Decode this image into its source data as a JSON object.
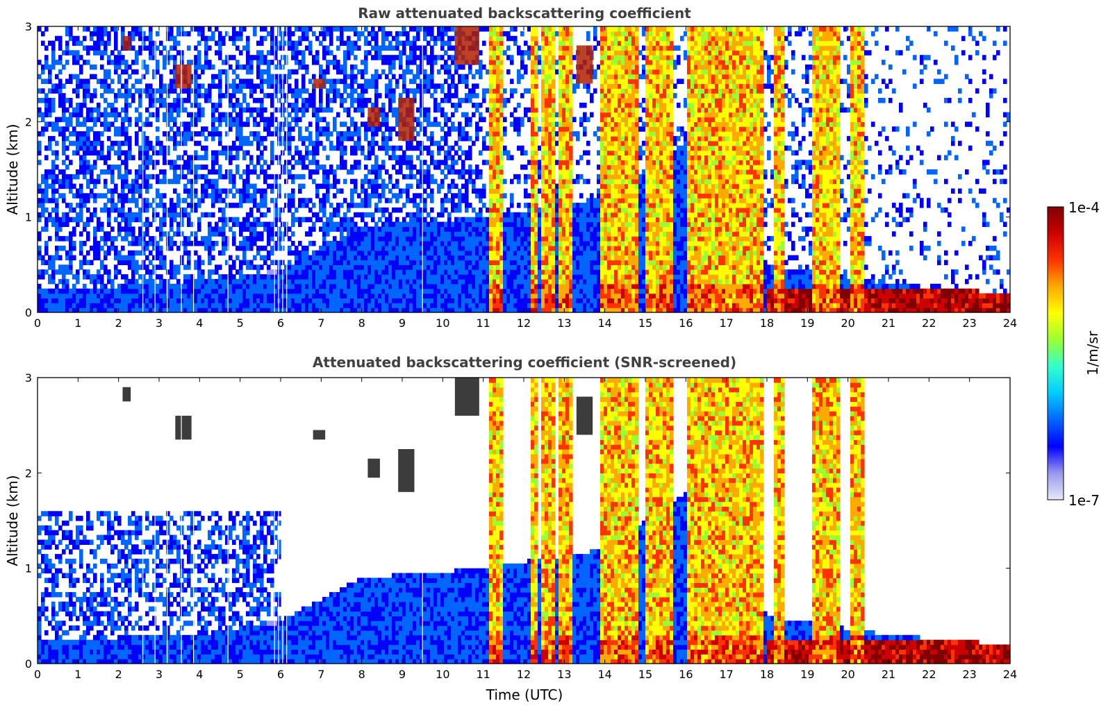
{
  "chart_data": [
    {
      "type": "heatmap",
      "title": "Raw attenuated backscattering coefficient",
      "xlabel": "",
      "ylabel": "Altitude (km)",
      "xlim": [
        0,
        24
      ],
      "ylim": [
        0,
        3
      ],
      "xticks": [
        "0",
        "1",
        "2",
        "3",
        "4",
        "5",
        "6",
        "7",
        "8",
        "9",
        "10",
        "11",
        "12",
        "13",
        "14",
        "15",
        "16",
        "17",
        "18",
        "19",
        "20",
        "21",
        "22",
        "23",
        "24"
      ],
      "yticks": [
        "0",
        "1",
        "2",
        "3"
      ],
      "screened": false
    },
    {
      "type": "heatmap",
      "title": "Attenuated backscattering coefficient (SNR-screened)",
      "xlabel": "Time (UTC)",
      "ylabel": "Altitude (km)",
      "xlim": [
        0,
        24
      ],
      "ylim": [
        0,
        3
      ],
      "xticks": [
        "0",
        "1",
        "2",
        "3",
        "4",
        "5",
        "6",
        "7",
        "8",
        "9",
        "10",
        "11",
        "12",
        "13",
        "14",
        "15",
        "16",
        "17",
        "18",
        "19",
        "20",
        "21",
        "22",
        "23",
        "24"
      ],
      "yticks": [
        "0",
        "1",
        "2",
        "3"
      ],
      "screened": true
    }
  ],
  "colorbar": {
    "label": "1/m/sr",
    "max_label": "1e-4",
    "min_label": "1e-7",
    "scale": "log",
    "range": [
      1e-07,
      0.0001
    ],
    "colors": [
      "#e8e8f8",
      "#9999ee",
      "#0000ff",
      "#0066ff",
      "#00ccff",
      "#33ffcc",
      "#99ff33",
      "#ffff00",
      "#ffaa00",
      "#ff3300",
      "#cc0000",
      "#800000"
    ]
  },
  "features": {
    "boundary_layer_top_km": [
      [
        0,
        0.25
      ],
      [
        4,
        0.3
      ],
      [
        6,
        0.45
      ],
      [
        8,
        0.9
      ],
      [
        11,
        1.0
      ],
      [
        14,
        1.2
      ],
      [
        16,
        1.8
      ],
      [
        17,
        1.95
      ],
      [
        18,
        0.5
      ],
      [
        21,
        0.3
      ],
      [
        24,
        0.2
      ]
    ],
    "cloud_columns_utc": [
      [
        11.15,
        11.45
      ],
      [
        12.15,
        12.3
      ],
      [
        12.45,
        12.75
      ],
      [
        12.9,
        13.2
      ],
      [
        13.85,
        14.8
      ],
      [
        15.0,
        15.7
      ],
      [
        16.0,
        17.9
      ],
      [
        18.2,
        18.4
      ],
      [
        19.15,
        19.8
      ],
      [
        20.1,
        20.4
      ]
    ],
    "dropout_lines_utc": [
      2.6,
      2.9,
      3.2,
      3.55,
      3.85,
      4.7,
      5.85,
      5.95,
      6.05,
      6.15,
      9.5
    ],
    "elevated_layers": [
      {
        "t0": 2.1,
        "t1": 2.3,
        "z0": 2.75,
        "z1": 2.9
      },
      {
        "t0": 3.4,
        "t1": 3.8,
        "z0": 2.35,
        "z1": 2.6
      },
      {
        "t0": 6.8,
        "t1": 7.1,
        "z0": 2.35,
        "z1": 2.45
      },
      {
        "t0": 8.15,
        "t1": 8.45,
        "z0": 1.95,
        "z1": 2.15
      },
      {
        "t0": 8.9,
        "t1": 9.3,
        "z0": 1.8,
        "z1": 2.25
      },
      {
        "t0": 10.3,
        "t1": 10.9,
        "z0": 2.6,
        "z1": 3.0
      },
      {
        "t0": 13.3,
        "t1": 13.7,
        "z0": 2.4,
        "z1": 2.8
      }
    ]
  }
}
